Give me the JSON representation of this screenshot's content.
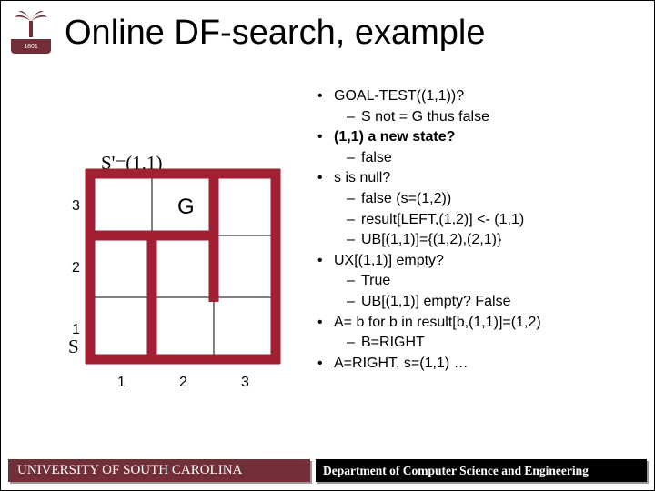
{
  "title": "Online DF-search, example",
  "logo_year": "1801",
  "s_prime_label": "S'=(1,1)",
  "s_label": "S",
  "maze": {
    "grid_size": 3,
    "axis_labels": [
      "1",
      "2",
      "3"
    ],
    "cell_label_G": "G",
    "wall_color": "#a31f34",
    "grid_color": "#000000",
    "bg_color": "#ffffff",
    "axis_font": 16
  },
  "bullets": [
    {
      "level": 1,
      "text": "GOAL-TEST((1,1))?"
    },
    {
      "level": 2,
      "text": "S not = G thus false"
    },
    {
      "level": 1,
      "bold": true,
      "text": "(1,1) a new state?"
    },
    {
      "level": 2,
      "text": "false"
    },
    {
      "level": 1,
      "text": "s is null?"
    },
    {
      "level": 2,
      "text": "false (s=(1,2))"
    },
    {
      "level": 2,
      "text": "result[LEFT,(1,2)] <- (1,1)"
    },
    {
      "level": 2,
      "text": "UB[(1,1)]={(1,2),(2,1)}"
    },
    {
      "level": 1,
      "text": "UX[(1,1)] empty?"
    },
    {
      "level": 2,
      "text": "True"
    },
    {
      "level": 2,
      "text": "UB[(1,1)] empty? False"
    },
    {
      "level": 1,
      "text": "A= b for b in result[b,(1,1)]=(1,2)"
    },
    {
      "level": 2,
      "text": "B=RIGHT"
    },
    {
      "level": 1,
      "text": "A=RIGHT, s=(1,1) …"
    }
  ],
  "footer_left": "UNIVERSITY OF SOUTH CAROLINA",
  "footer_right": "Department of Computer Science and Engineering",
  "colors": {
    "garnet": "#722f37",
    "wall": "#a31f34",
    "black": "#000000"
  }
}
